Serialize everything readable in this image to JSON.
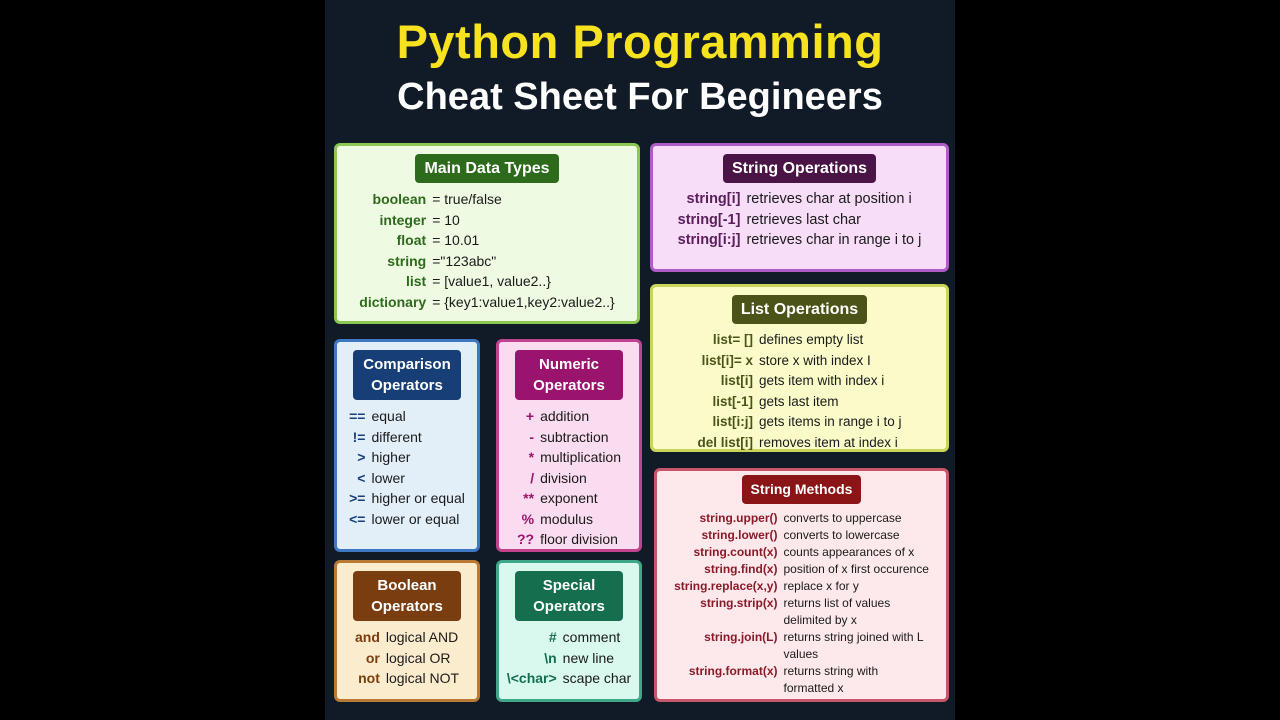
{
  "title": {
    "line1": "Python Programming",
    "line2": "Cheat Sheet For Begineers"
  },
  "sections": [
    {
      "id": "main-data-types",
      "title": "Main Data Types",
      "colors": {
        "bg": "#eefbe2",
        "border": "#8cc653",
        "badge": "#2d6a1b",
        "key": "#2d6a1b"
      },
      "rows": [
        [
          "boolean",
          "= true/false"
        ],
        [
          "integer",
          "= 10"
        ],
        [
          "float",
          "= 10.01"
        ],
        [
          "string",
          "=\"123abc\""
        ],
        [
          "list",
          "= [value1, value2..}"
        ],
        [
          "dictionary",
          "= {key1:value1,key2:value2..}"
        ]
      ]
    },
    {
      "id": "string-operations",
      "title": "String Operations",
      "colors": {
        "bg": "#f7ddf7",
        "border": "#b05cc6",
        "badge": "#4a1447",
        "key": "#5a1e5a"
      },
      "rows": [
        [
          "string[i]",
          "retrieves char at position i"
        ],
        [
          "string[-1]",
          "retrieves last char"
        ],
        [
          "string[i:j]",
          "retrieves char in range i to j"
        ]
      ]
    },
    {
      "id": "list-operations",
      "title": "List Operations",
      "colors": {
        "bg": "#fbfbca",
        "border": "#c9d45a",
        "badge": "#4c5318",
        "key": "#4c5318"
      },
      "rows": [
        [
          "list= []",
          "defines empty list"
        ],
        [
          "list[i]= x",
          "store x with index I"
        ],
        [
          "list[i]",
          "gets item with index i"
        ],
        [
          "list[-1]",
          "gets last item"
        ],
        [
          "list[i:j]",
          "gets items in range i to j"
        ],
        [
          "del list[i]",
          "removes item at index  i"
        ]
      ]
    },
    {
      "id": "comparison-operators",
      "title": "Comparison Operators",
      "colors": {
        "bg": "#e2eff8",
        "border": "#3d78c0",
        "badge": "#173e77",
        "key": "#173e77"
      },
      "rows": [
        [
          "==",
          "equal"
        ],
        [
          "!=",
          "different"
        ],
        [
          ">",
          "higher"
        ],
        [
          "<",
          "lower"
        ],
        [
          ">=",
          "higher or equal"
        ],
        [
          "<=",
          "lower or equal"
        ]
      ]
    },
    {
      "id": "numeric-operators",
      "title": "Numeric Operators",
      "colors": {
        "bg": "#fadcf0",
        "border": "#c0438f",
        "badge": "#9a146d",
        "key": "#9a146d"
      },
      "rows": [
        [
          "+",
          "addition"
        ],
        [
          "-",
          "subtraction"
        ],
        [
          "*",
          "multiplication"
        ],
        [
          "/",
          "division"
        ],
        [
          "**",
          "exponent"
        ],
        [
          "%",
          "modulus"
        ],
        [
          "??",
          "floor division"
        ]
      ]
    },
    {
      "id": "boolean-operators",
      "title": "Boolean Operators",
      "colors": {
        "bg": "#fcecce",
        "border": "#b97a36",
        "badge": "#7a3d10",
        "key": "#7a3d10"
      },
      "rows": [
        [
          "and",
          "logical AND"
        ],
        [
          "or",
          "logical OR"
        ],
        [
          "not",
          "logical NOT"
        ]
      ]
    },
    {
      "id": "special-operators",
      "title": "Special Operators",
      "colors": {
        "bg": "#d9f8ee",
        "border": "#3fa888",
        "badge": "#156f4f",
        "key": "#156f4f"
      },
      "rows": [
        [
          "#",
          "comment"
        ],
        [
          "\\n",
          "new line"
        ],
        [
          "\\<char>",
          "scape char"
        ]
      ]
    },
    {
      "id": "string-methods",
      "title": "String Methods",
      "colors": {
        "bg": "#fde9eb",
        "border": "#c8566a",
        "badge": "#8a1416",
        "key": "#8a1a2a"
      },
      "rows": [
        [
          "string.upper()",
          "converts to uppercase"
        ],
        [
          "string.lower()",
          "converts to lowercase"
        ],
        [
          "string.count(x)",
          "counts appearances of x"
        ],
        [
          "string.find(x)",
          "position of x first occurence"
        ],
        [
          "string.replace(x,y)",
          "replace x for y"
        ],
        [
          "string.strip(x)",
          "returns list of values"
        ],
        [
          "",
          "delimited by x"
        ],
        [
          "string.join(L)",
          "returns string joined with L"
        ],
        [
          "",
          "values"
        ],
        [
          "string.format(x)",
          "returns string with"
        ],
        [
          "",
          "formatted x"
        ]
      ]
    }
  ]
}
